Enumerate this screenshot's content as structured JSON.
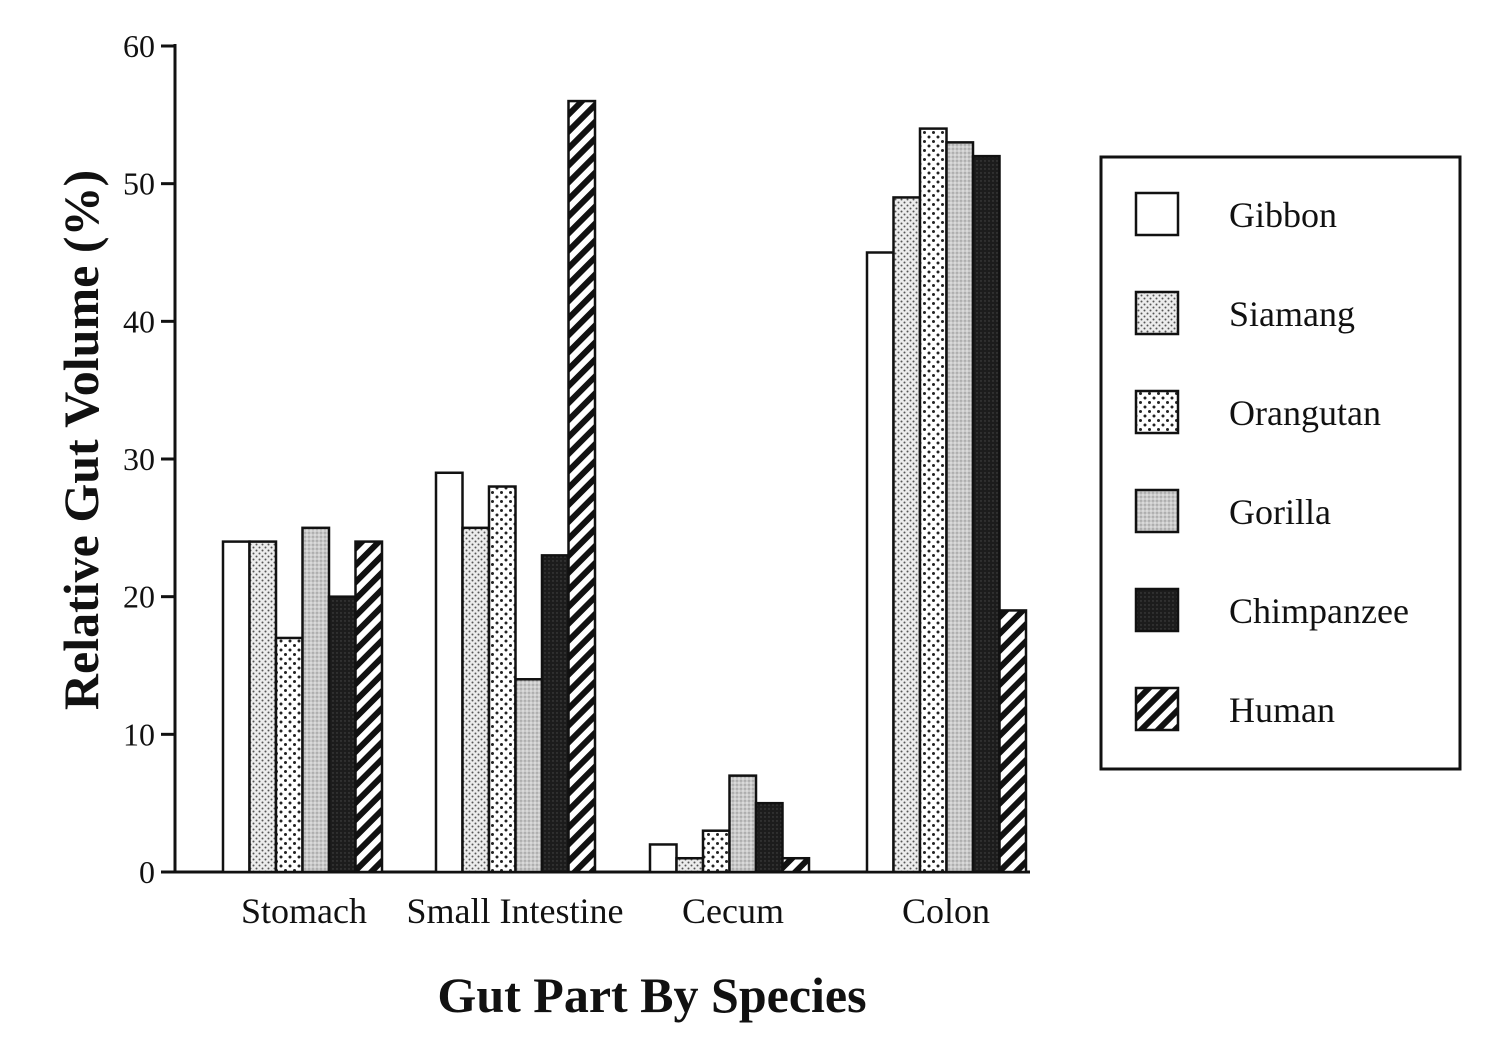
{
  "chart_data": {
    "type": "bar",
    "title": "",
    "xlabel": "Gut Part By Species",
    "ylabel": "Relative Gut Volume (%)",
    "ylim": [
      0,
      60
    ],
    "yticks": [
      0,
      10,
      20,
      30,
      40,
      50,
      60
    ],
    "categories": [
      "Stomach",
      "Small Intestine",
      "Cecum",
      "Colon"
    ],
    "legend_position": "right",
    "grid": false,
    "series": [
      {
        "name": "Gibbon",
        "pattern": "white",
        "values": [
          24,
          29,
          2,
          45
        ]
      },
      {
        "name": "Siamang",
        "pattern": "fine-dots",
        "values": [
          24,
          25,
          1,
          49
        ]
      },
      {
        "name": "Orangutan",
        "pattern": "sparse-dots",
        "values": [
          17,
          28,
          3,
          54
        ]
      },
      {
        "name": "Gorilla",
        "pattern": "light-gray",
        "values": [
          25,
          14,
          7,
          53
        ]
      },
      {
        "name": "Chimpanzee",
        "pattern": "dark",
        "values": [
          20,
          23,
          5,
          52
        ]
      },
      {
        "name": "Human",
        "pattern": "diagonal-hatch",
        "values": [
          24,
          56,
          1,
          19
        ]
      }
    ]
  }
}
